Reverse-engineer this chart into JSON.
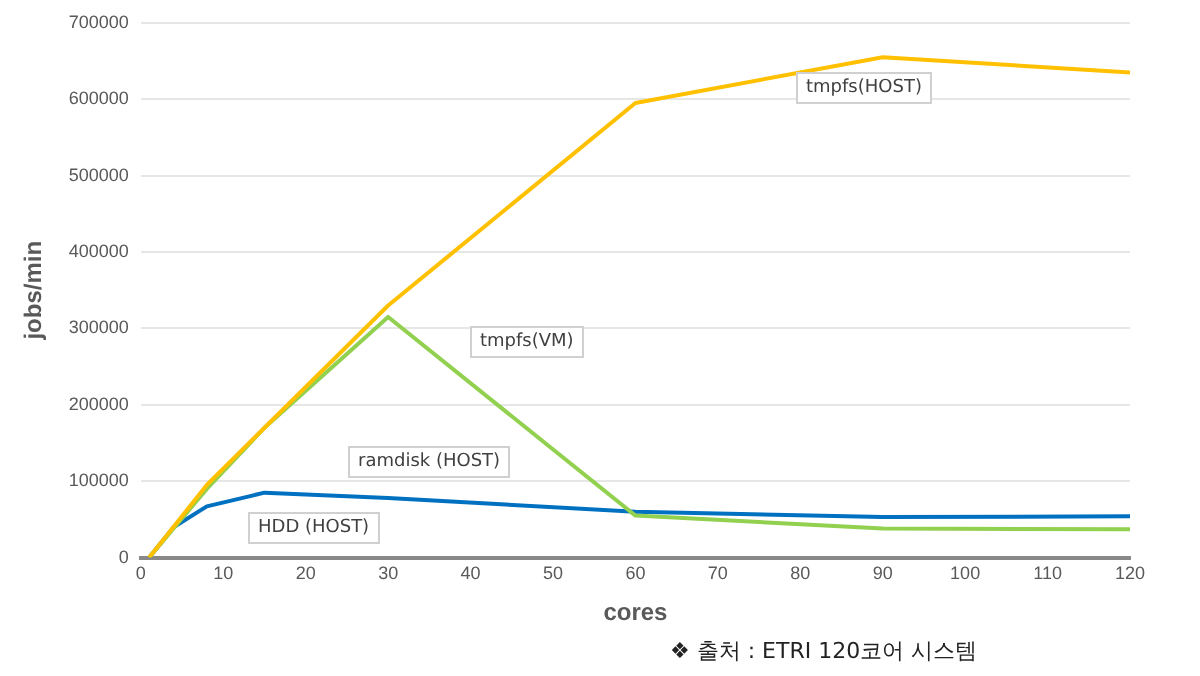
{
  "chart_data": {
    "type": "line",
    "xlabel": "cores",
    "ylabel": "jobs/min",
    "xlim": [
      0,
      120
    ],
    "xticks": [
      0,
      10,
      20,
      30,
      40,
      50,
      60,
      70,
      80,
      90,
      100,
      110,
      120
    ],
    "ylim": [
      0,
      700000
    ],
    "yticks": [
      0,
      100000,
      200000,
      300000,
      400000,
      500000,
      600000,
      700000
    ],
    "grid": "y",
    "legend": false,
    "marker": "none",
    "line_style": "solid",
    "series": [
      {
        "color": "#ffc000",
        "x": [
          1,
          8,
          15,
          30,
          60,
          90,
          120
        ],
        "values": [
          0,
          95000,
          170000,
          330000,
          595000,
          655000,
          635000
        ]
      },
      {
        "color": "#92d050",
        "x": [
          1,
          8,
          15,
          30,
          60,
          90,
          120
        ],
        "values": [
          0,
          90000,
          170000,
          315000,
          55000,
          38000,
          37000
        ]
      },
      {
        "color": "#0070c0",
        "x": [
          1,
          4,
          8,
          15,
          30,
          60,
          90,
          120
        ],
        "values": [
          0,
          40000,
          67000,
          85000,
          78000,
          60000,
          53000,
          54000
        ]
      }
    ],
    "annotations": [
      "tmpfs(HOST)",
      "tmpfs(VM)",
      "ramdisk (HOST)",
      "HDD (HOST)",
      "❖  출처 : ETRI 120코어 시스템"
    ]
  }
}
